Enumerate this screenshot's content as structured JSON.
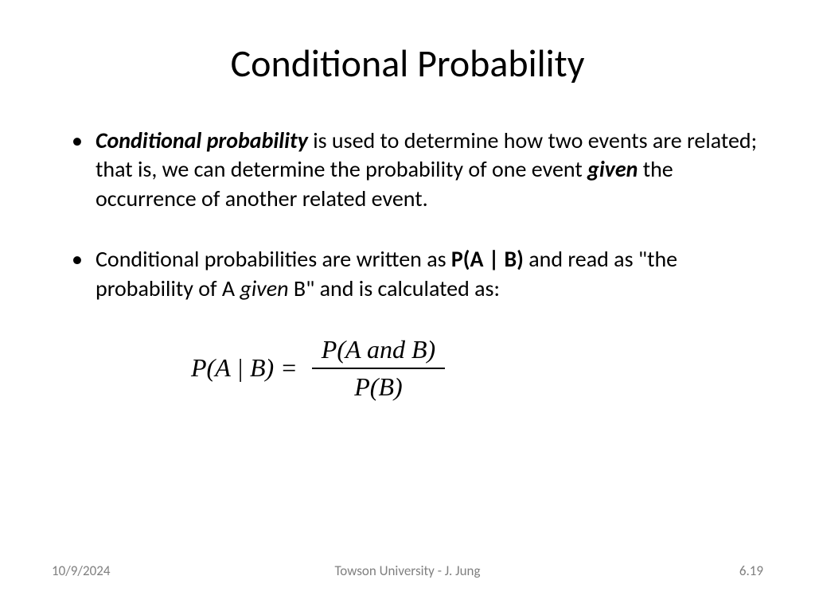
{
  "slide": {
    "title": "Conditional Probability",
    "bullet1": {
      "bold_italic_lead": "Conditional probability",
      "text_part1": " is used to determine how two events are related; that is, we can determine the probability of one event ",
      "bold_italic_mid": "given",
      "text_part2": " the occurrence of another related event."
    },
    "bullet2": {
      "text_part1": "Conditional probabilities are written as ",
      "bold_notation": "P(A | B)",
      "text_part2": " and read as \"the probability of A ",
      "italic_word": "given",
      "text_part3": " B\" and is calculated as:"
    },
    "formula": {
      "left_side": "P(A | B) = ",
      "numerator": "P(A and B)",
      "denominator": "P(B)"
    },
    "footer": {
      "date": "10/9/2024",
      "author": "Towson University - J. Jung",
      "page": "6.19"
    },
    "styling": {
      "background_color": "#ffffff",
      "text_color": "#000000",
      "footer_color": "#808080",
      "title_fontsize": 48,
      "body_fontsize": 28,
      "formula_fontsize": 32,
      "footer_fontsize": 17,
      "body_font": "Calibri",
      "formula_font": "Times New Roman"
    }
  }
}
